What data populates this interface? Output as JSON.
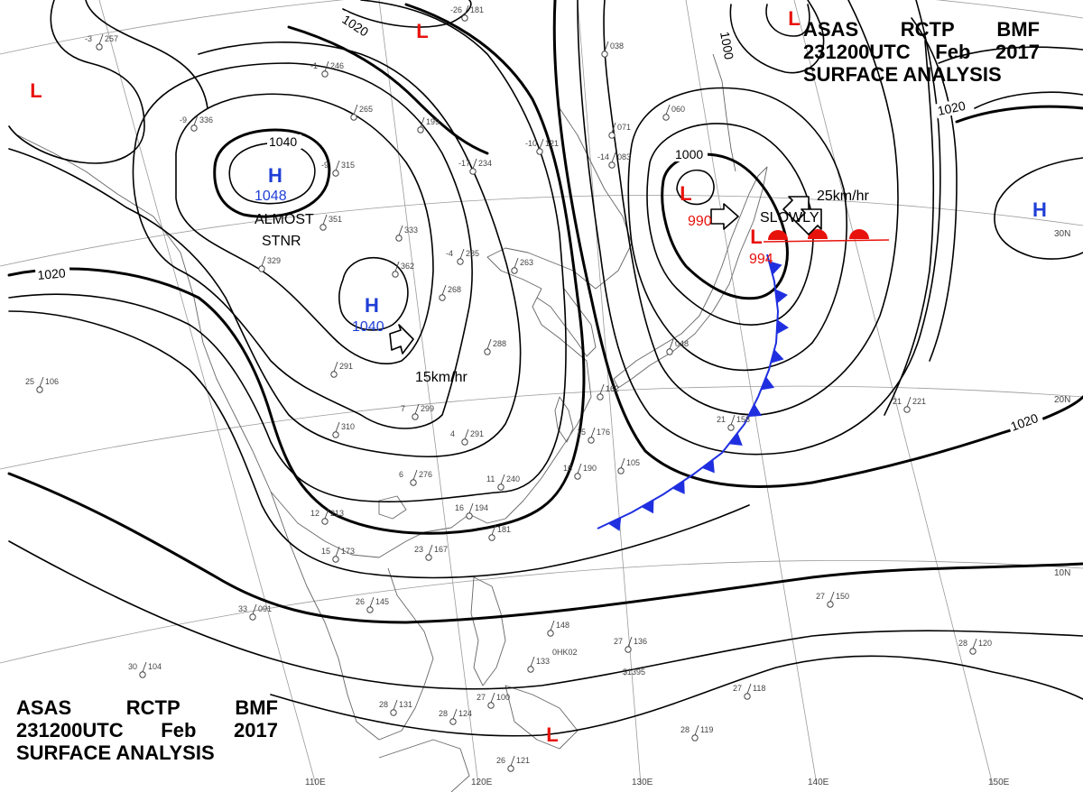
{
  "header": {
    "agency": "ASAS",
    "station": "RCTP",
    "code": "BMF",
    "time": "231200UTC",
    "month": "Feb",
    "year": "2017",
    "product": "SURFACE ANALYSIS"
  },
  "colors": {
    "isobar": "#000000",
    "high": "#1f3fd6",
    "low": "#e8120c",
    "cold_front": "#1f2fe0",
    "warm_front": "#e8120c",
    "graticule": "#9a9a9a",
    "coast": "#666666",
    "station": "#444444"
  },
  "isobar_labels": [
    "1020",
    "1020",
    "1020",
    "1020",
    "1040",
    "1000",
    "1000"
  ],
  "pressure_centers": [
    {
      "type": "high",
      "symbol": "H",
      "value": "1048"
    },
    {
      "type": "high",
      "symbol": "H",
      "value": "1040"
    },
    {
      "type": "high",
      "symbol": "H",
      "value": ""
    },
    {
      "type": "low",
      "symbol": "L",
      "value": "990"
    },
    {
      "type": "low",
      "symbol": "L",
      "value": "994"
    },
    {
      "type": "low",
      "symbol": "L",
      "value": ""
    },
    {
      "type": "low",
      "symbol": "L",
      "value": ""
    },
    {
      "type": "low",
      "symbol": "L",
      "value": ""
    },
    {
      "type": "low",
      "symbol": "L",
      "value": ""
    }
  ],
  "annotations": [
    "ALMOST",
    "STNR",
    "15km/hr",
    "SLOWLY",
    "25km/hr"
  ],
  "lat_labels": [
    "30N",
    "20N",
    "10N"
  ],
  "lon_labels": [
    "110E",
    "120E",
    "130E",
    "140E",
    "150E"
  ],
  "stations": [
    {
      "t": "-3",
      "p": "257"
    },
    {
      "t": "-1",
      "p": "246"
    },
    {
      "t": "-26",
      "p": "181"
    },
    {
      "t": "-9",
      "p": "336"
    },
    {
      "t": "",
      "p": "265"
    },
    {
      "t": "",
      "p": "199"
    },
    {
      "t": "-9",
      "p": "315"
    },
    {
      "t": "",
      "p": "351"
    },
    {
      "t": "",
      "p": "333"
    },
    {
      "t": "",
      "p": "329"
    },
    {
      "t": "",
      "p": "362"
    },
    {
      "t": "-4",
      "p": "285"
    },
    {
      "t": "",
      "p": "263"
    },
    {
      "t": "",
      "p": "268"
    },
    {
      "t": "",
      "p": "288"
    },
    {
      "t": "",
      "p": "291"
    },
    {
      "t": "7",
      "p": "299"
    },
    {
      "t": "",
      "p": "310"
    },
    {
      "t": "4",
      "p": "291"
    },
    {
      "t": "6",
      "p": "276"
    },
    {
      "t": "11",
      "p": "240"
    },
    {
      "t": "12",
      "p": "213"
    },
    {
      "t": "16",
      "p": "194"
    },
    {
      "t": "",
      "p": "181"
    },
    {
      "t": "23",
      "p": "167"
    },
    {
      "t": "15",
      "p": "173"
    },
    {
      "t": "-10",
      "p": "121"
    },
    {
      "t": "-17",
      "p": "234"
    },
    {
      "t": "-14",
      "p": "083"
    },
    {
      "t": "",
      "p": "038"
    },
    {
      "t": "",
      "p": "060"
    },
    {
      "t": "",
      "p": "071"
    },
    {
      "t": "",
      "p": "048"
    },
    {
      "t": "15",
      "p": "176"
    },
    {
      "t": "",
      "p": "162"
    },
    {
      "t": "16",
      "p": "190"
    },
    {
      "t": "",
      "p": "105"
    },
    {
      "t": "21",
      "p": "158"
    },
    {
      "t": "21",
      "p": "221"
    },
    {
      "t": "33",
      "p": "091"
    },
    {
      "t": "26",
      "p": "145"
    },
    {
      "t": "27",
      "p": "136"
    },
    {
      "t": "",
      "p": "133"
    },
    {
      "t": "",
      "p": "148"
    },
    {
      "t": "27",
      "p": "150"
    },
    {
      "t": "28",
      "p": "120"
    },
    {
      "t": "27",
      "p": "118"
    },
    {
      "t": "28",
      "p": "119"
    },
    {
      "t": "30",
      "p": "104"
    },
    {
      "t": "28",
      "p": "131"
    },
    {
      "t": "27",
      "p": "100"
    },
    {
      "t": "28",
      "p": "124"
    },
    {
      "t": "26",
      "p": "121"
    },
    {
      "t": "25",
      "p": "106"
    }
  ],
  "station_codes": [
    "0HK02",
    "$1395"
  ]
}
